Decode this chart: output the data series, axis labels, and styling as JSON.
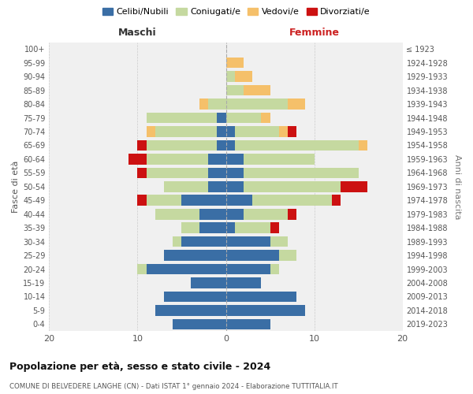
{
  "age_groups": [
    "0-4",
    "5-9",
    "10-14",
    "15-19",
    "20-24",
    "25-29",
    "30-34",
    "35-39",
    "40-44",
    "45-49",
    "50-54",
    "55-59",
    "60-64",
    "65-69",
    "70-74",
    "75-79",
    "80-84",
    "85-89",
    "90-94",
    "95-99",
    "100+"
  ],
  "birth_years": [
    "2019-2023",
    "2014-2018",
    "2009-2013",
    "2004-2008",
    "1999-2003",
    "1994-1998",
    "1989-1993",
    "1984-1988",
    "1979-1983",
    "1974-1978",
    "1969-1973",
    "1964-1968",
    "1959-1963",
    "1954-1958",
    "1949-1953",
    "1944-1948",
    "1939-1943",
    "1934-1938",
    "1929-1933",
    "1924-1928",
    "≤ 1923"
  ],
  "colors": {
    "celibi": "#3a6ea5",
    "coniugati": "#c5d9a0",
    "vedovi": "#f5c06a",
    "divorziati": "#cc1111"
  },
  "maschi": {
    "celibi": [
      6,
      8,
      7,
      4,
      9,
      7,
      5,
      3,
      3,
      5,
      2,
      2,
      2,
      1,
      1,
      1,
      0,
      0,
      0,
      0,
      0
    ],
    "coniugati": [
      0,
      0,
      0,
      0,
      1,
      0,
      1,
      2,
      5,
      4,
      5,
      7,
      7,
      8,
      7,
      8,
      2,
      0,
      0,
      0,
      0
    ],
    "vedovi": [
      0,
      0,
      0,
      0,
      0,
      0,
      0,
      0,
      0,
      0,
      0,
      0,
      0,
      0,
      1,
      0,
      1,
      0,
      0,
      0,
      0
    ],
    "divorziati": [
      0,
      0,
      0,
      0,
      0,
      0,
      0,
      0,
      0,
      1,
      0,
      1,
      2,
      1,
      0,
      0,
      0,
      0,
      0,
      0,
      0
    ]
  },
  "femmine": {
    "celibi": [
      5,
      9,
      8,
      4,
      5,
      6,
      5,
      1,
      2,
      3,
      2,
      2,
      2,
      1,
      1,
      0,
      0,
      0,
      0,
      0,
      0
    ],
    "coniugati": [
      0,
      0,
      0,
      0,
      1,
      2,
      2,
      4,
      5,
      9,
      11,
      13,
      8,
      14,
      5,
      4,
      7,
      2,
      1,
      0,
      0
    ],
    "vedovi": [
      0,
      0,
      0,
      0,
      0,
      0,
      0,
      0,
      0,
      0,
      0,
      0,
      0,
      1,
      1,
      1,
      2,
      3,
      2,
      2,
      0
    ],
    "divorziati": [
      0,
      0,
      0,
      0,
      0,
      0,
      0,
      1,
      1,
      1,
      3,
      0,
      0,
      0,
      1,
      0,
      0,
      0,
      0,
      0,
      0
    ]
  },
  "xlim": 20,
  "title": "Popolazione per età, sesso e stato civile - 2024",
  "subtitle": "COMUNE DI BELVEDERE LANGHE (CN) - Dati ISTAT 1° gennaio 2024 - Elaborazione TUTTITALIA.IT",
  "xlabel_left": "Maschi",
  "xlabel_right": "Femmine",
  "ylabel_left": "Fasce di età",
  "ylabel_right": "Anni di nascita",
  "background_color": "#ffffff",
  "grid_color": "#cccccc",
  "legend_labels": [
    "Celibi/Nubili",
    "Coniugati/e",
    "Vedovi/e",
    "Divorziati/e"
  ]
}
